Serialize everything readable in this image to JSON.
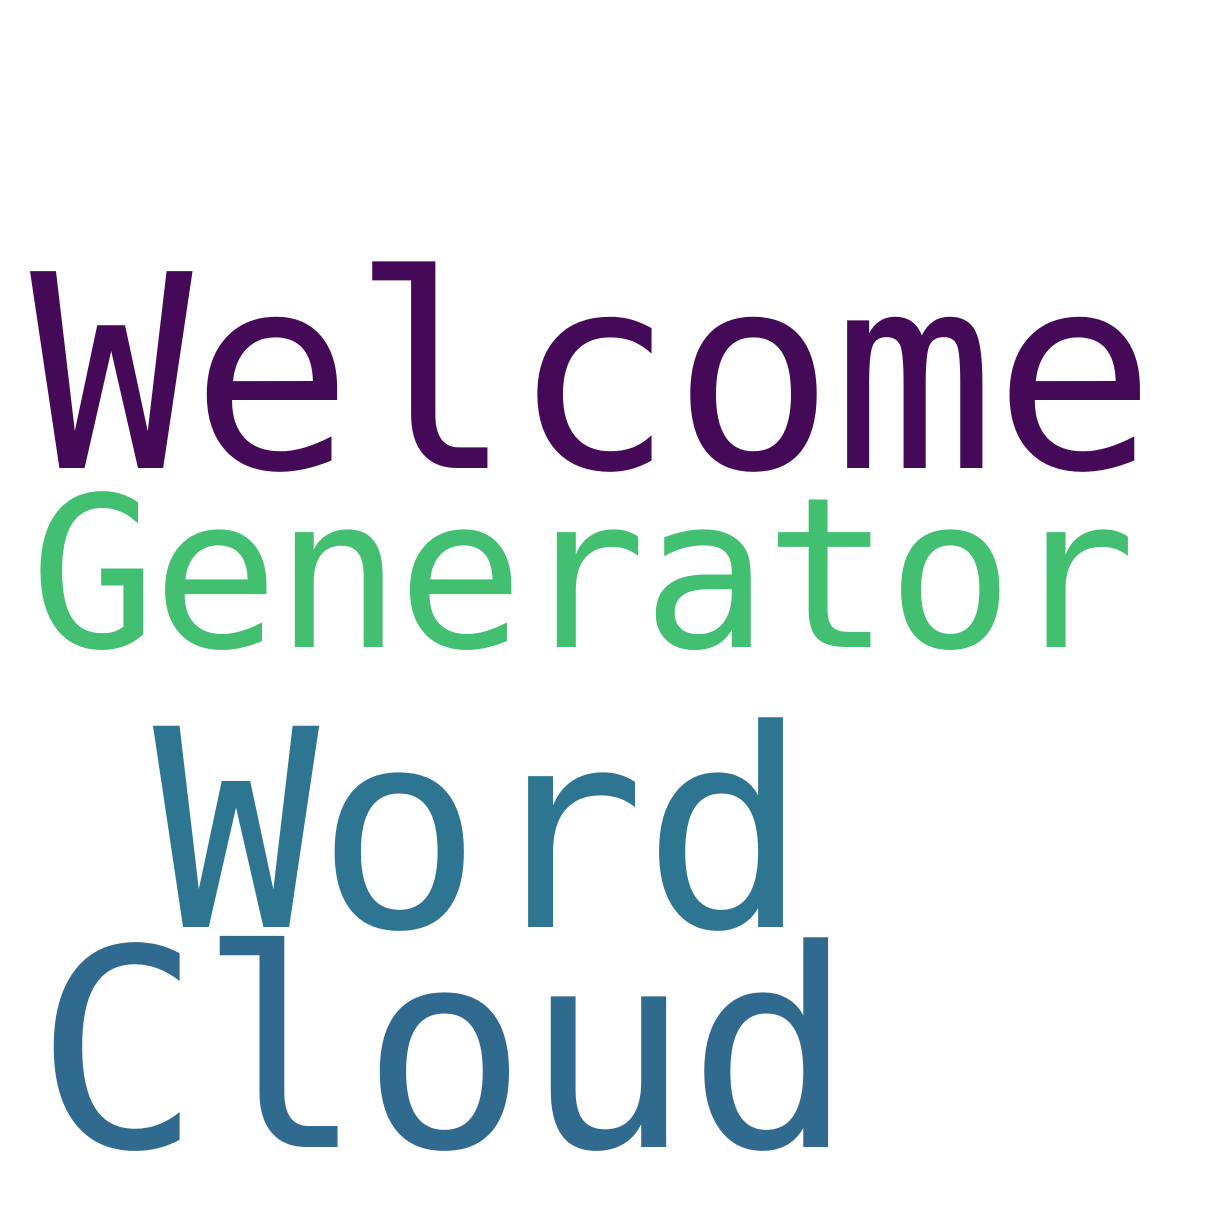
{
  "words": [
    {
      "text": "Welcome",
      "color": "#440a57"
    },
    {
      "text": "Generator",
      "color": "#43bf71"
    },
    {
      "text": "Word",
      "color": "#2d7590"
    },
    {
      "text": "Cloud",
      "color": "#306a8e"
    }
  ],
  "background_color": "#ffffff"
}
